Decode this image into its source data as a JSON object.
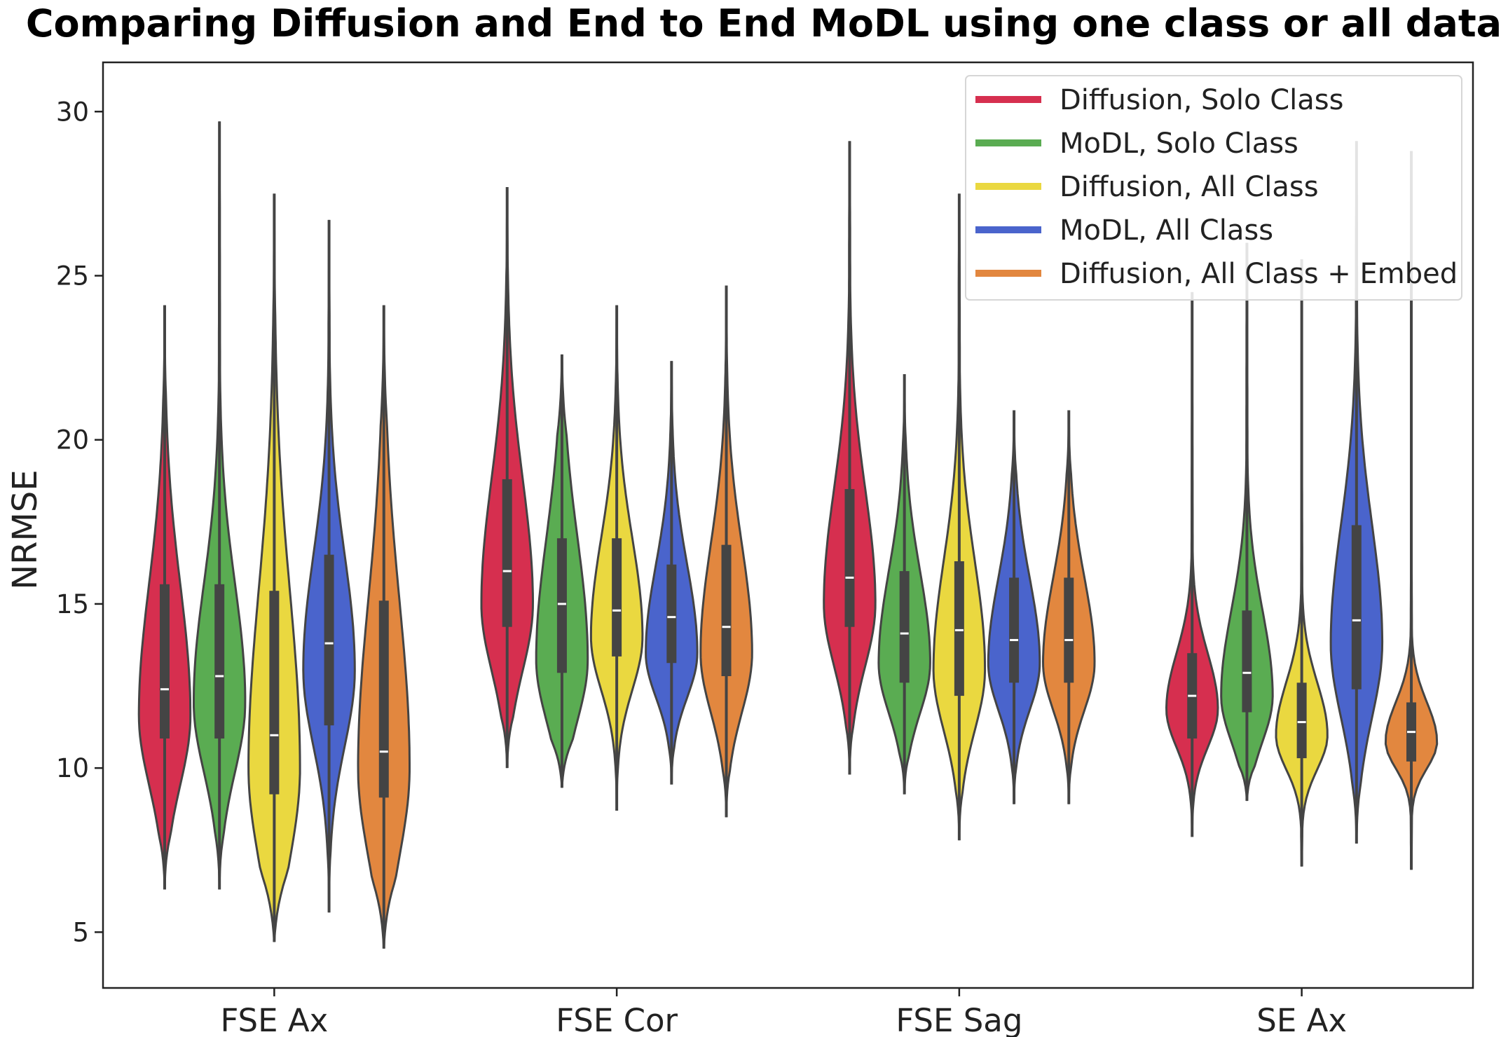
{
  "chart_data": {
    "type": "violin",
    "title": "Comparing Diffusion and End to End MoDL using one class or all data",
    "xlabel": "",
    "ylabel": "NRMSE",
    "ylim": [
      3.3,
      31.5
    ],
    "yticks": [
      5,
      10,
      15,
      20,
      25,
      30
    ],
    "categories": [
      "FSE Ax",
      "FSE Cor",
      "FSE Sag",
      "SE Ax"
    ],
    "legend_position": "top-right",
    "series": [
      {
        "name": "Diffusion, Solo Class",
        "color": "#d62f4f",
        "stats": [
          {
            "min": 6.3,
            "q1": 10.9,
            "median": 12.4,
            "q3": 15.6,
            "max": 24.1,
            "mode": 11.6
          },
          {
            "min": 10.0,
            "q1": 14.3,
            "median": 16.0,
            "q3": 18.8,
            "max": 27.7,
            "mode": 15.0
          },
          {
            "min": 9.8,
            "q1": 14.3,
            "median": 15.8,
            "q3": 18.5,
            "max": 29.1,
            "mode": 15.0
          },
          {
            "min": 7.9,
            "q1": 10.9,
            "median": 12.2,
            "q3": 13.5,
            "max": 24.5,
            "mode": 11.8
          }
        ]
      },
      {
        "name": "MoDL, Solo Class",
        "color": "#5aac52",
        "stats": [
          {
            "min": 6.3,
            "q1": 10.9,
            "median": 12.8,
            "q3": 15.6,
            "max": 29.7,
            "mode": 12.0
          },
          {
            "min": 9.4,
            "q1": 12.9,
            "median": 15.0,
            "q3": 17.0,
            "max": 22.6,
            "mode": 13.3
          },
          {
            "min": 9.2,
            "q1": 12.6,
            "median": 14.1,
            "q3": 16.0,
            "max": 22.0,
            "mode": 13.2
          },
          {
            "min": 9.0,
            "q1": 11.7,
            "median": 12.9,
            "q3": 14.8,
            "max": 26.0,
            "mode": 12.2
          }
        ]
      },
      {
        "name": "Diffusion, All Class",
        "color": "#ead840",
        "stats": [
          {
            "min": 4.7,
            "q1": 9.2,
            "median": 11.0,
            "q3": 15.4,
            "max": 27.5,
            "mode": 10.0
          },
          {
            "min": 8.7,
            "q1": 13.4,
            "median": 14.8,
            "q3": 17.0,
            "max": 24.1,
            "mode": 14.0
          },
          {
            "min": 7.8,
            "q1": 12.2,
            "median": 14.2,
            "q3": 16.3,
            "max": 27.5,
            "mode": 13.0
          },
          {
            "min": 7.0,
            "q1": 10.3,
            "median": 11.4,
            "q3": 12.6,
            "max": 25.5,
            "mode": 11.0
          }
        ]
      },
      {
        "name": "MoDL, All Class",
        "color": "#4a64cc",
        "stats": [
          {
            "min": 5.6,
            "q1": 11.3,
            "median": 13.8,
            "q3": 16.5,
            "max": 26.7,
            "mode": 13.0
          },
          {
            "min": 9.5,
            "q1": 13.2,
            "median": 14.6,
            "q3": 16.2,
            "max": 22.4,
            "mode": 13.5
          },
          {
            "min": 8.9,
            "q1": 12.6,
            "median": 13.9,
            "q3": 15.8,
            "max": 20.9,
            "mode": 13.2
          },
          {
            "min": 7.7,
            "q1": 12.4,
            "median": 14.5,
            "q3": 17.4,
            "max": 29.1,
            "mode": 13.8
          }
        ]
      },
      {
        "name": "Diffusion, All Class + Embed",
        "color": "#e2873f",
        "stats": [
          {
            "min": 4.5,
            "q1": 9.1,
            "median": 10.5,
            "q3": 15.1,
            "max": 24.1,
            "mode": 10.0
          },
          {
            "min": 8.5,
            "q1": 12.8,
            "median": 14.3,
            "q3": 16.8,
            "max": 24.7,
            "mode": 13.5
          },
          {
            "min": 8.9,
            "q1": 12.6,
            "median": 13.9,
            "q3": 15.8,
            "max": 20.9,
            "mode": 13.2
          },
          {
            "min": 6.9,
            "q1": 10.2,
            "median": 11.1,
            "q3": 12.0,
            "max": 28.8,
            "mode": 10.8
          }
        ]
      }
    ]
  }
}
